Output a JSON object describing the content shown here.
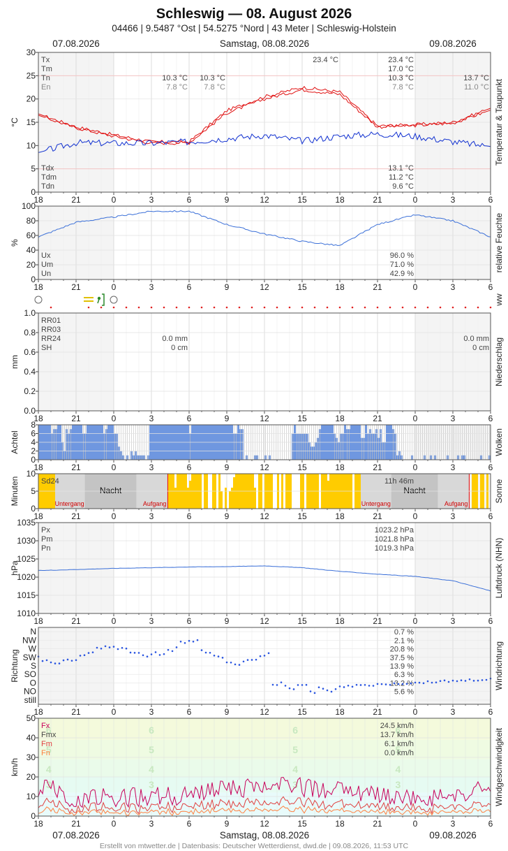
{
  "header": {
    "title": "Schleswig  —  08. August 2026",
    "subtitle": "04466  |  9.5487 °Ost  |  54.5275 °Nord  |  43 Meter  |  Schleswig-Holstein",
    "date_prev": "07.08.2026",
    "date_main": "Samstag, 08.08.2026",
    "date_next": "09.08.2026"
  },
  "footer": "Erstellt von mtwetter.de | Datenbasis: Deutscher Wetterdienst, dwd.de | 09.08.2026, 11:53 UTC",
  "x_ticks": [
    "18",
    "21",
    "0",
    "3",
    "6",
    "9",
    "12",
    "15",
    "18",
    "21",
    "0",
    "3",
    "6"
  ],
  "colors": {
    "max": "#e01010",
    "min": "#0000cc",
    "dew": "#1030d0",
    "humid": "#3a6fd8",
    "cloud": "#6f97e0",
    "sun": "#ffcc00",
    "wind_fx": "#c8005a",
    "wind_fm": "#e04040",
    "wind_fn": "#ff8040"
  },
  "chart_data": [
    {
      "type": "line",
      "ylabel": "°C",
      "right_label": "Temperatur & Taupunkt",
      "ylim": [
        0,
        30
      ],
      "yticks": [
        "0",
        "5",
        "10",
        "15",
        "20",
        "25",
        "30"
      ],
      "x": [
        "18",
        "21",
        "0",
        "3",
        "6",
        "9",
        "12",
        "15",
        "18",
        "21",
        "0",
        "3",
        "6"
      ],
      "series": [
        {
          "name": "Tx",
          "values": [
            16.8,
            14.0,
            12.3,
            10.8,
            10.8,
            17.5,
            20.5,
            22.5,
            21.5,
            14.2,
            14.5,
            15.0,
            18.0
          ]
        },
        {
          "name": "Tn",
          "values": [
            16.5,
            13.8,
            12.0,
            10.5,
            10.6,
            17.0,
            20.0,
            22.0,
            21.0,
            14.0,
            14.3,
            14.8,
            17.6
          ]
        },
        {
          "name": "Tdx",
          "values": [
            8.5,
            10.6,
            10.5,
            10.5,
            10.8,
            11.5,
            12.2,
            11.0,
            12.0,
            12.5,
            12.0,
            10.8,
            9.8
          ]
        }
      ],
      "stats_top": [
        {
          "label": "Tx",
          "prev": "",
          "a": "",
          "b": "23.4 °C",
          "c": "23.4 °C",
          "d": ""
        },
        {
          "label": "Tm",
          "prev": "",
          "a": "",
          "b": "",
          "c": "17.0 °C",
          "d": ""
        },
        {
          "label": "Tn",
          "prev": "10.3 °C",
          "a": "10.3 °C",
          "b": "",
          "c": "10.3 °C",
          "d": "13.7 °C"
        },
        {
          "label": "En",
          "prev": "7.8 °C",
          "a": "7.8 °C",
          "b": "",
          "c": "7.8 °C",
          "d": "11.0 °C"
        }
      ],
      "stats_bottom": [
        {
          "label": "Tdx",
          "value": "13.1 °C"
        },
        {
          "label": "Tdm",
          "value": "11.2 °C"
        },
        {
          "label": "Tdn",
          "value": "9.6 °C"
        }
      ]
    },
    {
      "type": "line",
      "ylabel": "%",
      "right_label": "relative Feuchte",
      "ylim": [
        0,
        100
      ],
      "yticks": [
        "0",
        "20",
        "40",
        "60",
        "80",
        "100"
      ],
      "series": [
        {
          "name": "U",
          "values": [
            58,
            78,
            85,
            93,
            93,
            75,
            62,
            52,
            46,
            75,
            88,
            80,
            58
          ]
        }
      ],
      "stats": [
        {
          "label": "Ux",
          "value": "96.0 %"
        },
        {
          "label": "Um",
          "value": "71.0 %"
        },
        {
          "label": "Un",
          "value": "42.9 %"
        }
      ]
    },
    {
      "type": "bar",
      "ylabel": "mm",
      "right_label": "Niederschlag",
      "ylim": [
        0,
        1.0
      ],
      "yticks": [
        "0.0",
        "0.2",
        "0.4",
        "0.6",
        "0.8",
        "1.0"
      ],
      "values": [],
      "stats_labels": [
        "RR01",
        "RR03",
        "RR24",
        "SH"
      ],
      "stats_mid": [
        "",
        "",
        "0.0 mm",
        "0 cm"
      ],
      "stats_right": [
        "",
        "",
        "0.0 mm",
        "0 cm"
      ]
    },
    {
      "type": "bar",
      "ylabel": "Achtel",
      "right_label": "Wolken",
      "ylim": [
        0,
        8
      ],
      "yticks": [
        "0",
        "2",
        "4",
        "6",
        "8"
      ],
      "values_by_hour": [
        8,
        8,
        6,
        7,
        3,
        7,
        8,
        8,
        7,
        8,
        8,
        8,
        7,
        8,
        5,
        2,
        1,
        1,
        2,
        1,
        1,
        8,
        8,
        8,
        8,
        8,
        8,
        8,
        7,
        8,
        8,
        8,
        8,
        8,
        8,
        8,
        8,
        7,
        7,
        0,
        0,
        0,
        0,
        0,
        0,
        0,
        0,
        0,
        7,
        7,
        6,
        4,
        4,
        7,
        8,
        8,
        5,
        6,
        7,
        8,
        8,
        5,
        7,
        6,
        6,
        4,
        8,
        6,
        1,
        1,
        0,
        0,
        0,
        0,
        0,
        0,
        0,
        0,
        0,
        0,
        0,
        0,
        0,
        0,
        0,
        0,
        0
      ]
    },
    {
      "type": "bar",
      "ylabel": "Minuten",
      "right_label": "Sonne",
      "ylim": [
        0,
        10
      ],
      "yticks": [
        "0",
        "5",
        "10"
      ],
      "labels": {
        "sd": "Sd24",
        "night": "Nacht",
        "sunset": "Untergang",
        "sunrise": "Aufgang",
        "duration": "11h 46m"
      }
    },
    {
      "type": "line",
      "ylabel": "hPa",
      "right_label": "Luftdruck (NHN)",
      "ylim": [
        1010,
        1035
      ],
      "yticks": [
        "1010",
        "1015",
        "1020",
        "1025",
        "1030",
        "1035"
      ],
      "series": [
        {
          "name": "P",
          "values": [
            1021.8,
            1022.1,
            1022.4,
            1022.6,
            1022.8,
            1022.9,
            1023.1,
            1022.6,
            1021.6,
            1020.8,
            1020.2,
            1019.0,
            1016.2
          ]
        }
      ],
      "stats": [
        {
          "label": "Px",
          "value": "1023.2 hPa"
        },
        {
          "label": "Pm",
          "value": "1021.8 hPa"
        },
        {
          "label": "Pn",
          "value": "1019.3 hPa"
        }
      ]
    },
    {
      "type": "scatter",
      "ylabel": "Richtung",
      "right_label": "Windrichtung",
      "categories": [
        "N",
        "NW",
        "W",
        "SW",
        "S",
        "SO",
        "O",
        "NO",
        "still"
      ],
      "percent": [
        "0.7 %",
        "2.1 %",
        "20.8 %",
        "37.5 %",
        "13.9 %",
        "6.3 %",
        "13.2 %",
        "5.6 %"
      ]
    },
    {
      "type": "line",
      "ylabel": "km/h",
      "right_label": "Windgeschwindigkeit",
      "ylim": [
        0,
        50
      ],
      "yticks": [
        "0",
        "10",
        "20",
        "30",
        "40",
        "50"
      ],
      "bft": [
        "6",
        "5",
        "4",
        "3"
      ],
      "stats": [
        {
          "label": "Fx",
          "value": "24.5 km/h"
        },
        {
          "label": "Fmx",
          "value": "13.7 km/h"
        },
        {
          "label": "Fm",
          "value": "6.1 km/h"
        },
        {
          "label": "Fn",
          "value": "0.0 km/h"
        }
      ]
    }
  ]
}
